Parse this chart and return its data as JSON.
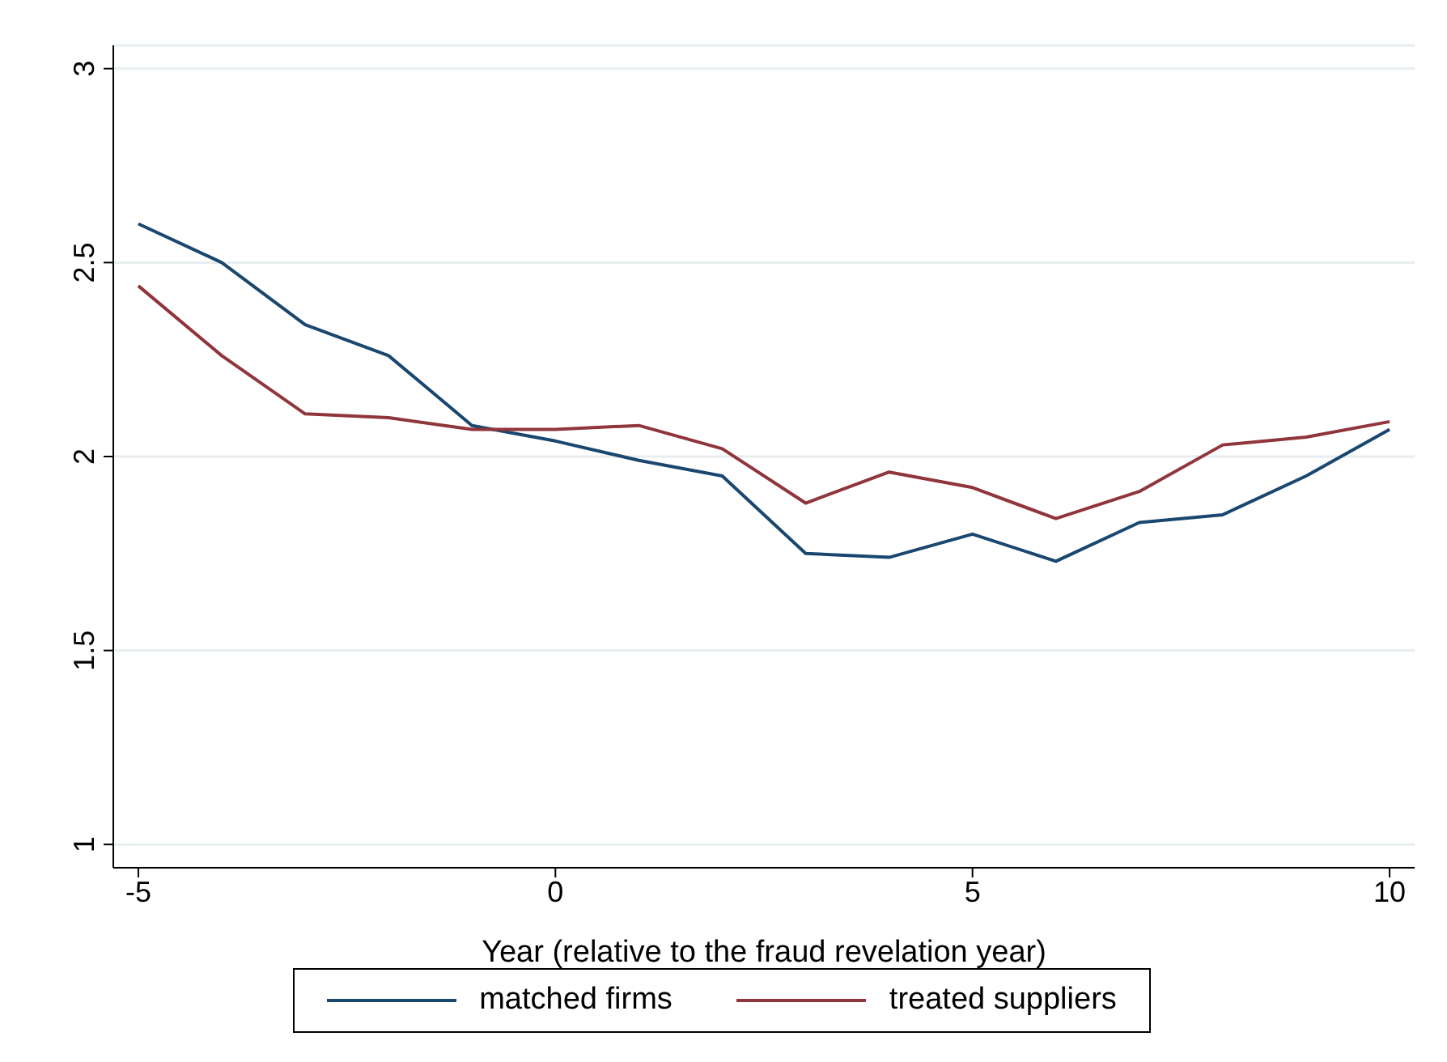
{
  "chart_data": {
    "type": "line",
    "xlabel": "Year (relative to the fraud revelation year)",
    "x": [
      -5,
      -4,
      -3,
      -2,
      -1,
      0,
      1,
      2,
      3,
      4,
      5,
      6,
      7,
      8,
      9,
      10
    ],
    "series": [
      {
        "name": "matched firms",
        "color": "#1a476f",
        "values": [
          2.6,
          2.5,
          2.34,
          2.26,
          2.08,
          2.04,
          1.99,
          1.95,
          1.75,
          1.74,
          1.8,
          1.73,
          1.83,
          1.85,
          1.95,
          2.07
        ]
      },
      {
        "name": "treated suppliers",
        "color": "#90353b",
        "values": [
          2.44,
          2.26,
          2.11,
          2.1,
          2.07,
          2.07,
          2.08,
          2.02,
          1.88,
          1.96,
          1.92,
          1.84,
          1.91,
          2.03,
          2.05,
          2.09
        ]
      }
    ],
    "xlim": [
      -5.3,
      10.3
    ],
    "xticks": [
      -5,
      0,
      5,
      10
    ],
    "ylim": [
      0.94,
      3.06
    ],
    "yticks": [
      1,
      1.5,
      2,
      2.5,
      3
    ],
    "grid": "y",
    "legend": "bottom",
    "marker": "none",
    "line_style": "solid"
  }
}
